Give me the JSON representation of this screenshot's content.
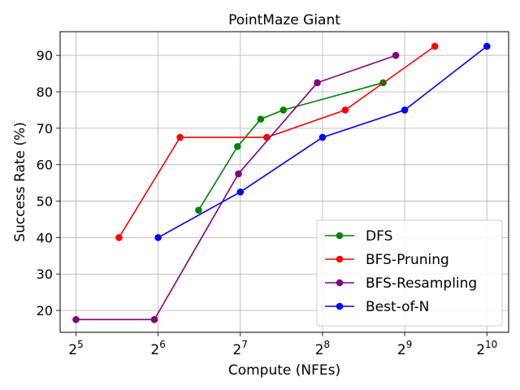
{
  "chart_data": {
    "type": "line",
    "title": "PointMaze Giant",
    "xlabel": "Compute (NFEs)",
    "ylabel": "Success Rate (%)",
    "xscale": "log2",
    "xlim": [
      28,
      1230
    ],
    "ylim": [
      14,
      96.5
    ],
    "x_ticks": [
      {
        "value": 32,
        "base": "2",
        "exp": "5"
      },
      {
        "value": 64,
        "base": "2",
        "exp": "6"
      },
      {
        "value": 128,
        "base": "2",
        "exp": "7"
      },
      {
        "value": 256,
        "base": "2",
        "exp": "8"
      },
      {
        "value": 512,
        "base": "2",
        "exp": "9"
      },
      {
        "value": 1024,
        "base": "2",
        "exp": "10"
      }
    ],
    "y_ticks": [
      20,
      30,
      40,
      50,
      60,
      70,
      80,
      90
    ],
    "grid": true,
    "legend_position": "bottom-right",
    "series": [
      {
        "name": "DFS",
        "color": "#008000",
        "points": [
          [
            90,
            47.5
          ],
          [
            125,
            65
          ],
          [
            152,
            72.5
          ],
          [
            184,
            75
          ],
          [
            427,
            82.5
          ]
        ]
      },
      {
        "name": "BFS-Pruning",
        "color": "#ff0000",
        "points": [
          [
            46,
            40
          ],
          [
            77,
            67.5
          ],
          [
            160,
            67.5
          ],
          [
            310,
            75
          ],
          [
            660,
            92.5
          ]
        ]
      },
      {
        "name": "BFS-Resampling",
        "color": "#800080",
        "points": [
          [
            32,
            17.5
          ],
          [
            62,
            17.5
          ],
          [
            126,
            57.5
          ],
          [
            245,
            82.5
          ],
          [
            475,
            90
          ]
        ]
      },
      {
        "name": "Best-of-N",
        "color": "#0000ff",
        "points": [
          [
            64,
            40
          ],
          [
            128,
            52.5
          ],
          [
            256,
            67.5
          ],
          [
            512,
            75
          ],
          [
            1024,
            92.5
          ]
        ]
      }
    ]
  }
}
